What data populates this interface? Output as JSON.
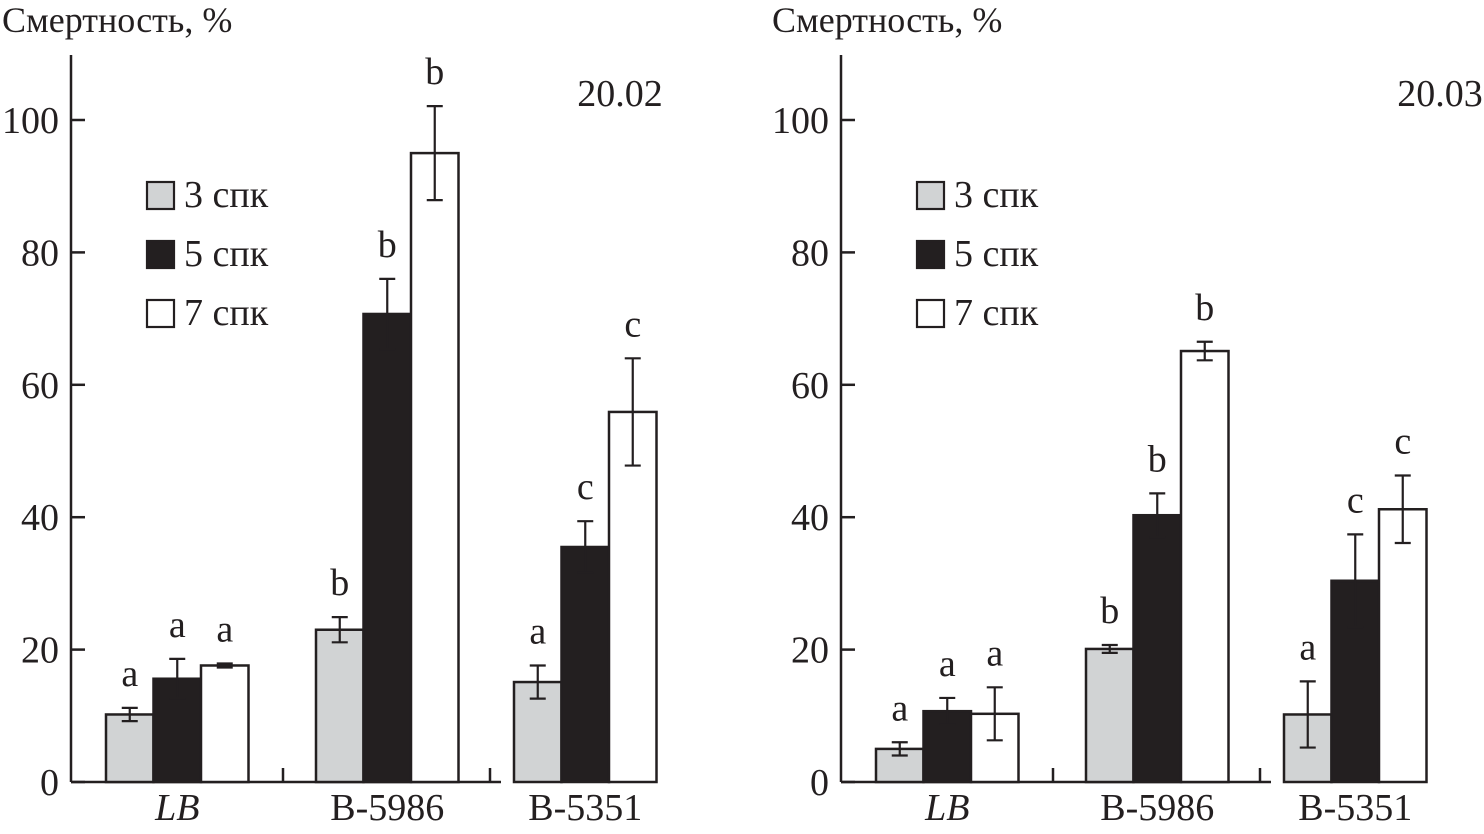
{
  "chart_data": [
    {
      "type": "bar",
      "title": "20.02",
      "ylabel": "Смертность, %",
      "xlabel": "",
      "ylim": [
        0,
        110
      ],
      "yticks": [
        0,
        20,
        40,
        60,
        80,
        100
      ],
      "categories": [
        "LB",
        "B-5986",
        "B-5351"
      ],
      "legend_placement": "top-left",
      "series": [
        {
          "name": "3 спк",
          "color": "#d1d3d4",
          "values": [
            10.2,
            23.0,
            15.1
          ],
          "errors": [
            1.0,
            1.9,
            2.5
          ],
          "letters": [
            "a",
            "b",
            "a"
          ]
        },
        {
          "name": "5 спк",
          "color": "#231f20",
          "values": [
            15.6,
            70.7,
            35.5
          ],
          "errors": [
            3.0,
            5.3,
            3.9
          ],
          "letters": [
            "a",
            "b",
            "c"
          ]
        },
        {
          "name": "7 спк",
          "color": "#ffffff",
          "values": [
            17.6,
            95.0,
            55.9
          ],
          "errors": [
            0.3,
            7.1,
            8.1
          ],
          "letters": [
            "a",
            "b",
            "c"
          ]
        }
      ]
    },
    {
      "type": "bar",
      "title": "20.03",
      "ylabel": "Смертность, %",
      "xlabel": "",
      "ylim": [
        0,
        110
      ],
      "yticks": [
        0,
        20,
        40,
        60,
        80,
        100
      ],
      "categories": [
        "LB",
        "B-5986",
        "B-5351"
      ],
      "legend_placement": "top-left",
      "series": [
        {
          "name": "3 спк",
          "color": "#d1d3d4",
          "values": [
            5.0,
            20.1,
            10.2
          ],
          "errors": [
            1.0,
            0.6,
            5.0
          ],
          "letters": [
            "a",
            "b",
            "a"
          ]
        },
        {
          "name": "5 спк",
          "color": "#231f20",
          "values": [
            10.7,
            40.3,
            30.4
          ],
          "errors": [
            2.0,
            3.3,
            7.0
          ],
          "letters": [
            "a",
            "b",
            "c"
          ]
        },
        {
          "name": "7 спк",
          "color": "#ffffff",
          "values": [
            10.3,
            65.1,
            41.2
          ],
          "errors": [
            4.0,
            1.4,
            5.1
          ],
          "letters": [
            "a",
            "b",
            "c"
          ]
        }
      ]
    }
  ]
}
